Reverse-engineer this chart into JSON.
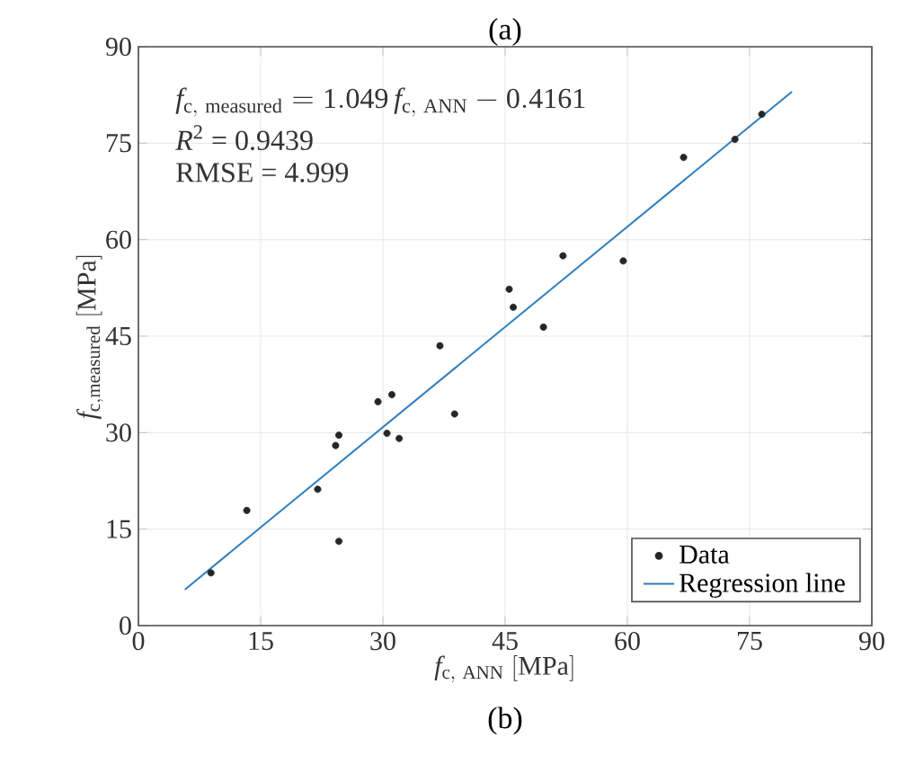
{
  "chart_data": {
    "type": "scatter",
    "title": "(a)",
    "xlabel": "f_{\\mathrm{c,\\ ANN}}\\ \\mathrm{[MPa]}",
    "ylabel": "f_{\\mathrm{c,measured}}\\ \\mathrm{[MPa]}",
    "annotations": [
      "f_{\\mathrm{c,\\ measured}} = 1.049\\,f_{\\mathrm{c,\\ ANN}} - 0.4161",
      "*R*$^{2}$ = 0.9439",
      "RMSE = 4.999",
      "(b)"
    ],
    "xlim": [
      0,
      90
    ],
    "ylim": [
      0,
      90
    ],
    "xticks": [
      0,
      15,
      30,
      45,
      60,
      75,
      90
    ],
    "yticks": [
      0,
      15,
      30,
      45,
      60,
      75,
      90
    ],
    "grid": true,
    "legend": "bottom right",
    "series": [
      {
        "name": "Data",
        "marker": "circle",
        "color": "#262626",
        "x": [
          8.9,
          13.3,
          22.0,
          24.2,
          24.6,
          24.6,
          29.4,
          31.1,
          30.5,
          32.0,
          37.0,
          38.8,
          45.5,
          46.0,
          49.7,
          52.1,
          59.5,
          66.9,
          73.2,
          76.5
        ],
        "values": [
          8.2,
          17.9,
          21.2,
          28.0,
          29.6,
          13.1,
          34.8,
          35.9,
          29.9,
          29.1,
          43.5,
          32.9,
          52.3,
          49.5,
          46.4,
          57.5,
          56.7,
          72.8,
          75.6,
          79.5
        ]
      },
      {
        "name": "Regression line",
        "type": "line",
        "marker": "none",
        "line_style": "solid",
        "color": "#2e7ebf",
        "x": [
          5.7,
          80.2
        ],
        "values": [
          5.6,
          83.0
        ]
      }
    ]
  }
}
